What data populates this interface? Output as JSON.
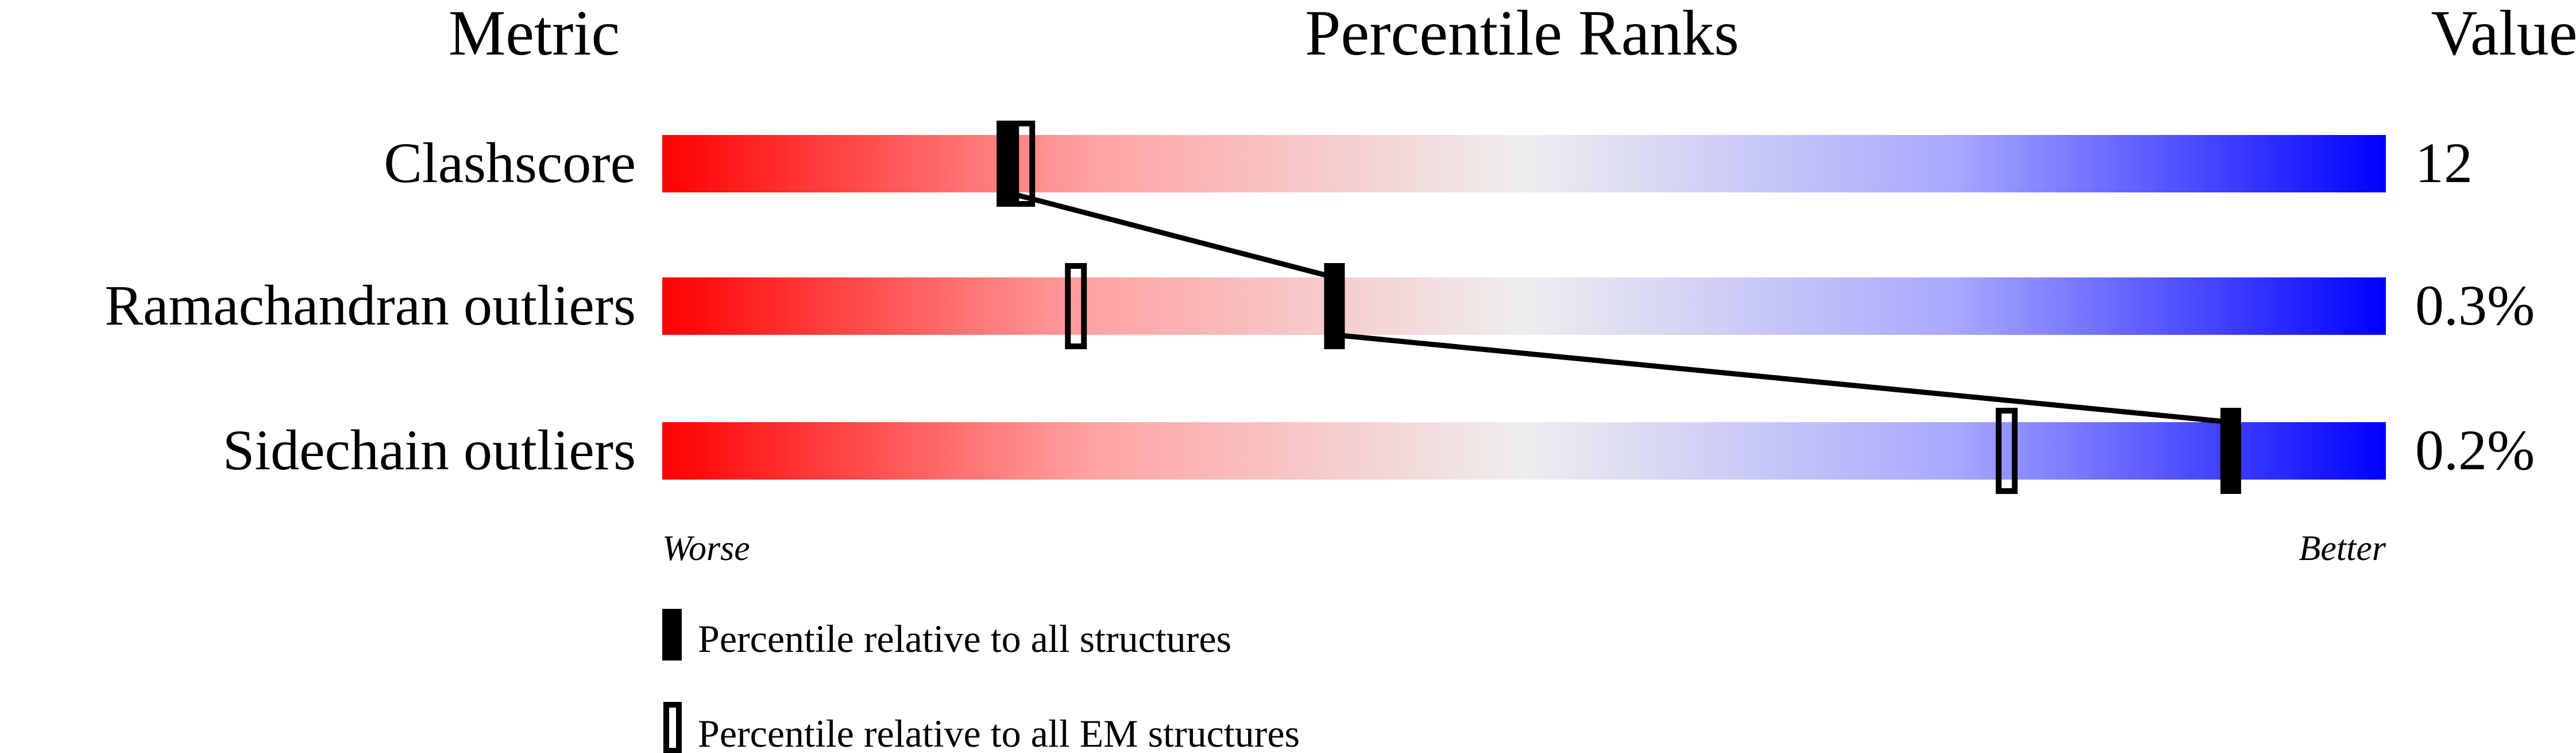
{
  "chart_data": {
    "type": "percentile-ranks",
    "headers": {
      "metric": "Metric",
      "title": "Percentile Ranks",
      "value": "Value"
    },
    "xlim": [
      0,
      100
    ],
    "axis_labels": {
      "left": "Worse",
      "right": "Better"
    },
    "gradient_colors": {
      "worse": "#ff0000",
      "middle": "#eeeeee",
      "better": "#0000ff"
    },
    "metrics": [
      {
        "name": "Clashscore",
        "value": "12",
        "percentile_all": 20,
        "percentile_em": 21
      },
      {
        "name": "Ramachandran outliers",
        "value": "0.3%",
        "percentile_all": 39,
        "percentile_em": 24
      },
      {
        "name": "Sidechain outliers",
        "value": "0.2%",
        "percentile_all": 91,
        "percentile_em": 78
      }
    ],
    "legend": [
      {
        "marker": "filled",
        "label": "Percentile relative to all structures"
      },
      {
        "marker": "open",
        "label": "Percentile relative to all EM structures"
      }
    ]
  }
}
